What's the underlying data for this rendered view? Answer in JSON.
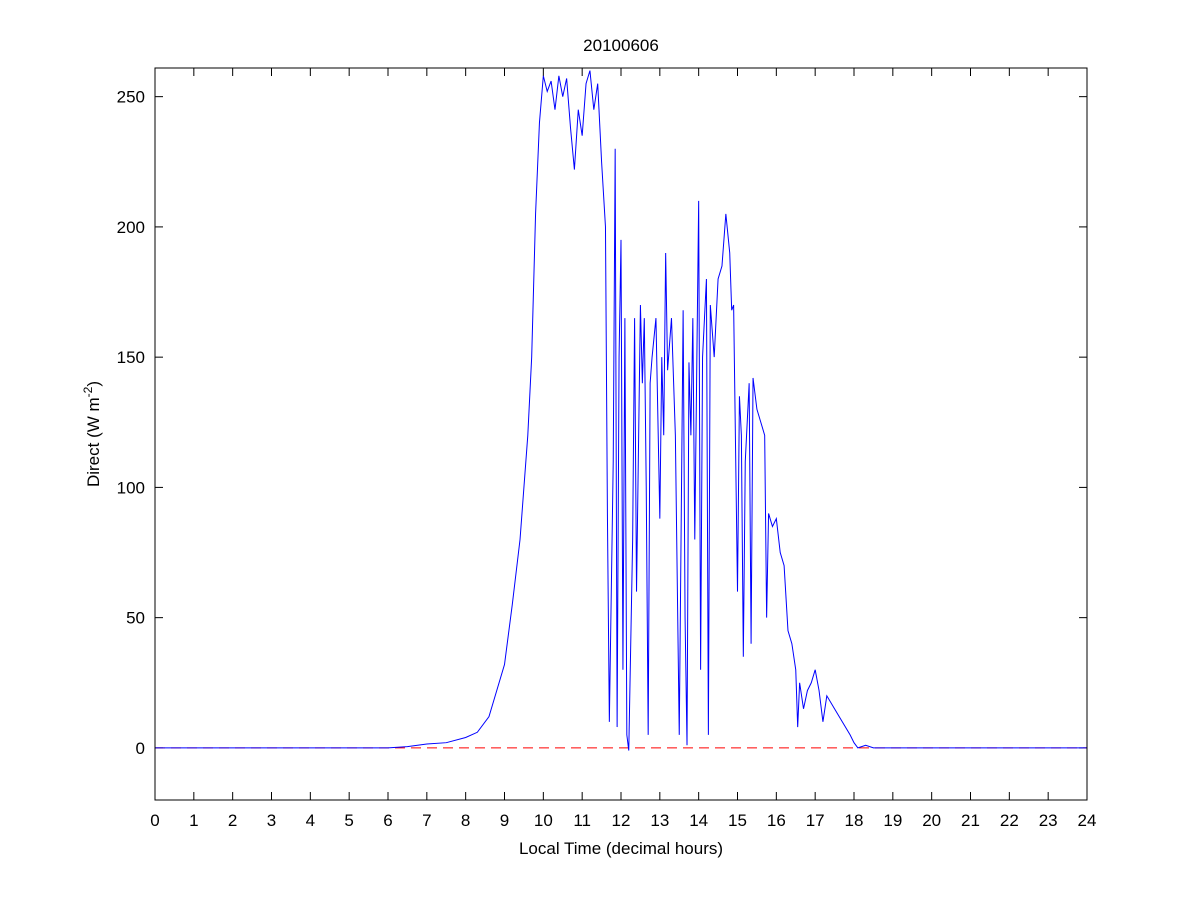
{
  "chart_data": {
    "type": "line",
    "title": "20100606",
    "xlabel": "Local Time (decimal hours)",
    "ylabel": {
      "text": "Direct (W m",
      "superscript": "-2",
      "suffix": ")"
    },
    "x": [
      0,
      6.0,
      6.5,
      7.0,
      7.5,
      8.0,
      8.3,
      8.6,
      8.8,
      9.0,
      9.2,
      9.4,
      9.6,
      9.7,
      9.8,
      9.9,
      10.0,
      10.1,
      10.2,
      10.3,
      10.4,
      10.5,
      10.6,
      10.7,
      10.8,
      10.9,
      11.0,
      11.1,
      11.2,
      11.3,
      11.4,
      11.5,
      11.6,
      11.65,
      11.7,
      11.75,
      11.8,
      11.85,
      11.9,
      11.95,
      12.0,
      12.05,
      12.1,
      12.15,
      12.2,
      12.3,
      12.35,
      12.4,
      12.5,
      12.55,
      12.6,
      12.65,
      12.7,
      12.75,
      12.8,
      12.9,
      13.0,
      13.05,
      13.1,
      13.15,
      13.2,
      13.3,
      13.4,
      13.5,
      13.6,
      13.65,
      13.7,
      13.75,
      13.8,
      13.85,
      13.9,
      14.0,
      14.05,
      14.1,
      14.2,
      14.25,
      14.3,
      14.4,
      14.5,
      14.6,
      14.7,
      14.8,
      14.85,
      14.9,
      15.0,
      15.05,
      15.1,
      15.15,
      15.2,
      15.3,
      15.35,
      15.4,
      15.5,
      15.6,
      15.7,
      15.75,
      15.8,
      15.9,
      16.0,
      16.1,
      16.2,
      16.3,
      16.4,
      16.5,
      16.55,
      16.6,
      16.7,
      16.8,
      16.9,
      17.0,
      17.1,
      17.2,
      17.3,
      17.5,
      17.7,
      17.9,
      18.0,
      18.1,
      18.3,
      18.5,
      19.0,
      24
    ],
    "series": [
      {
        "color": "#0000ff",
        "values": [
          0,
          0,
          0.5,
          1.5,
          2,
          4,
          6,
          12,
          22,
          32,
          55,
          80,
          120,
          150,
          205,
          240,
          258,
          252,
          256,
          245,
          258,
          250,
          257,
          238,
          222,
          245,
          235,
          255,
          260,
          245,
          255,
          225,
          200,
          90,
          10,
          60,
          110,
          230,
          8,
          150,
          195,
          30,
          165,
          5,
          -1,
          80,
          165,
          60,
          170,
          140,
          165,
          100,
          5,
          140,
          150,
          165,
          88,
          150,
          120,
          190,
          145,
          165,
          120,
          5,
          168,
          50,
          1,
          148,
          120,
          165,
          80,
          210,
          30,
          150,
          180,
          5,
          170,
          150,
          180,
          185,
          205,
          190,
          168,
          170,
          60,
          135,
          120,
          35,
          110,
          140,
          40,
          142,
          130,
          125,
          120,
          50,
          90,
          85,
          88,
          75,
          70,
          45,
          40,
          30,
          8,
          25,
          15,
          22,
          25,
          30,
          22,
          10,
          20,
          15,
          10,
          5,
          2,
          0,
          1,
          0,
          0,
          0
        ]
      }
    ],
    "reference_line": {
      "value": 0,
      "color": "#ff0000",
      "dashed": true
    },
    "xlim": [
      0,
      24
    ],
    "ylim": [
      -20,
      261
    ],
    "xticks": [
      0,
      1,
      2,
      3,
      4,
      5,
      6,
      7,
      8,
      9,
      10,
      11,
      12,
      13,
      14,
      15,
      16,
      17,
      18,
      19,
      20,
      21,
      22,
      23,
      24
    ],
    "yticks": [
      0,
      50,
      100,
      150,
      200,
      250
    ]
  }
}
